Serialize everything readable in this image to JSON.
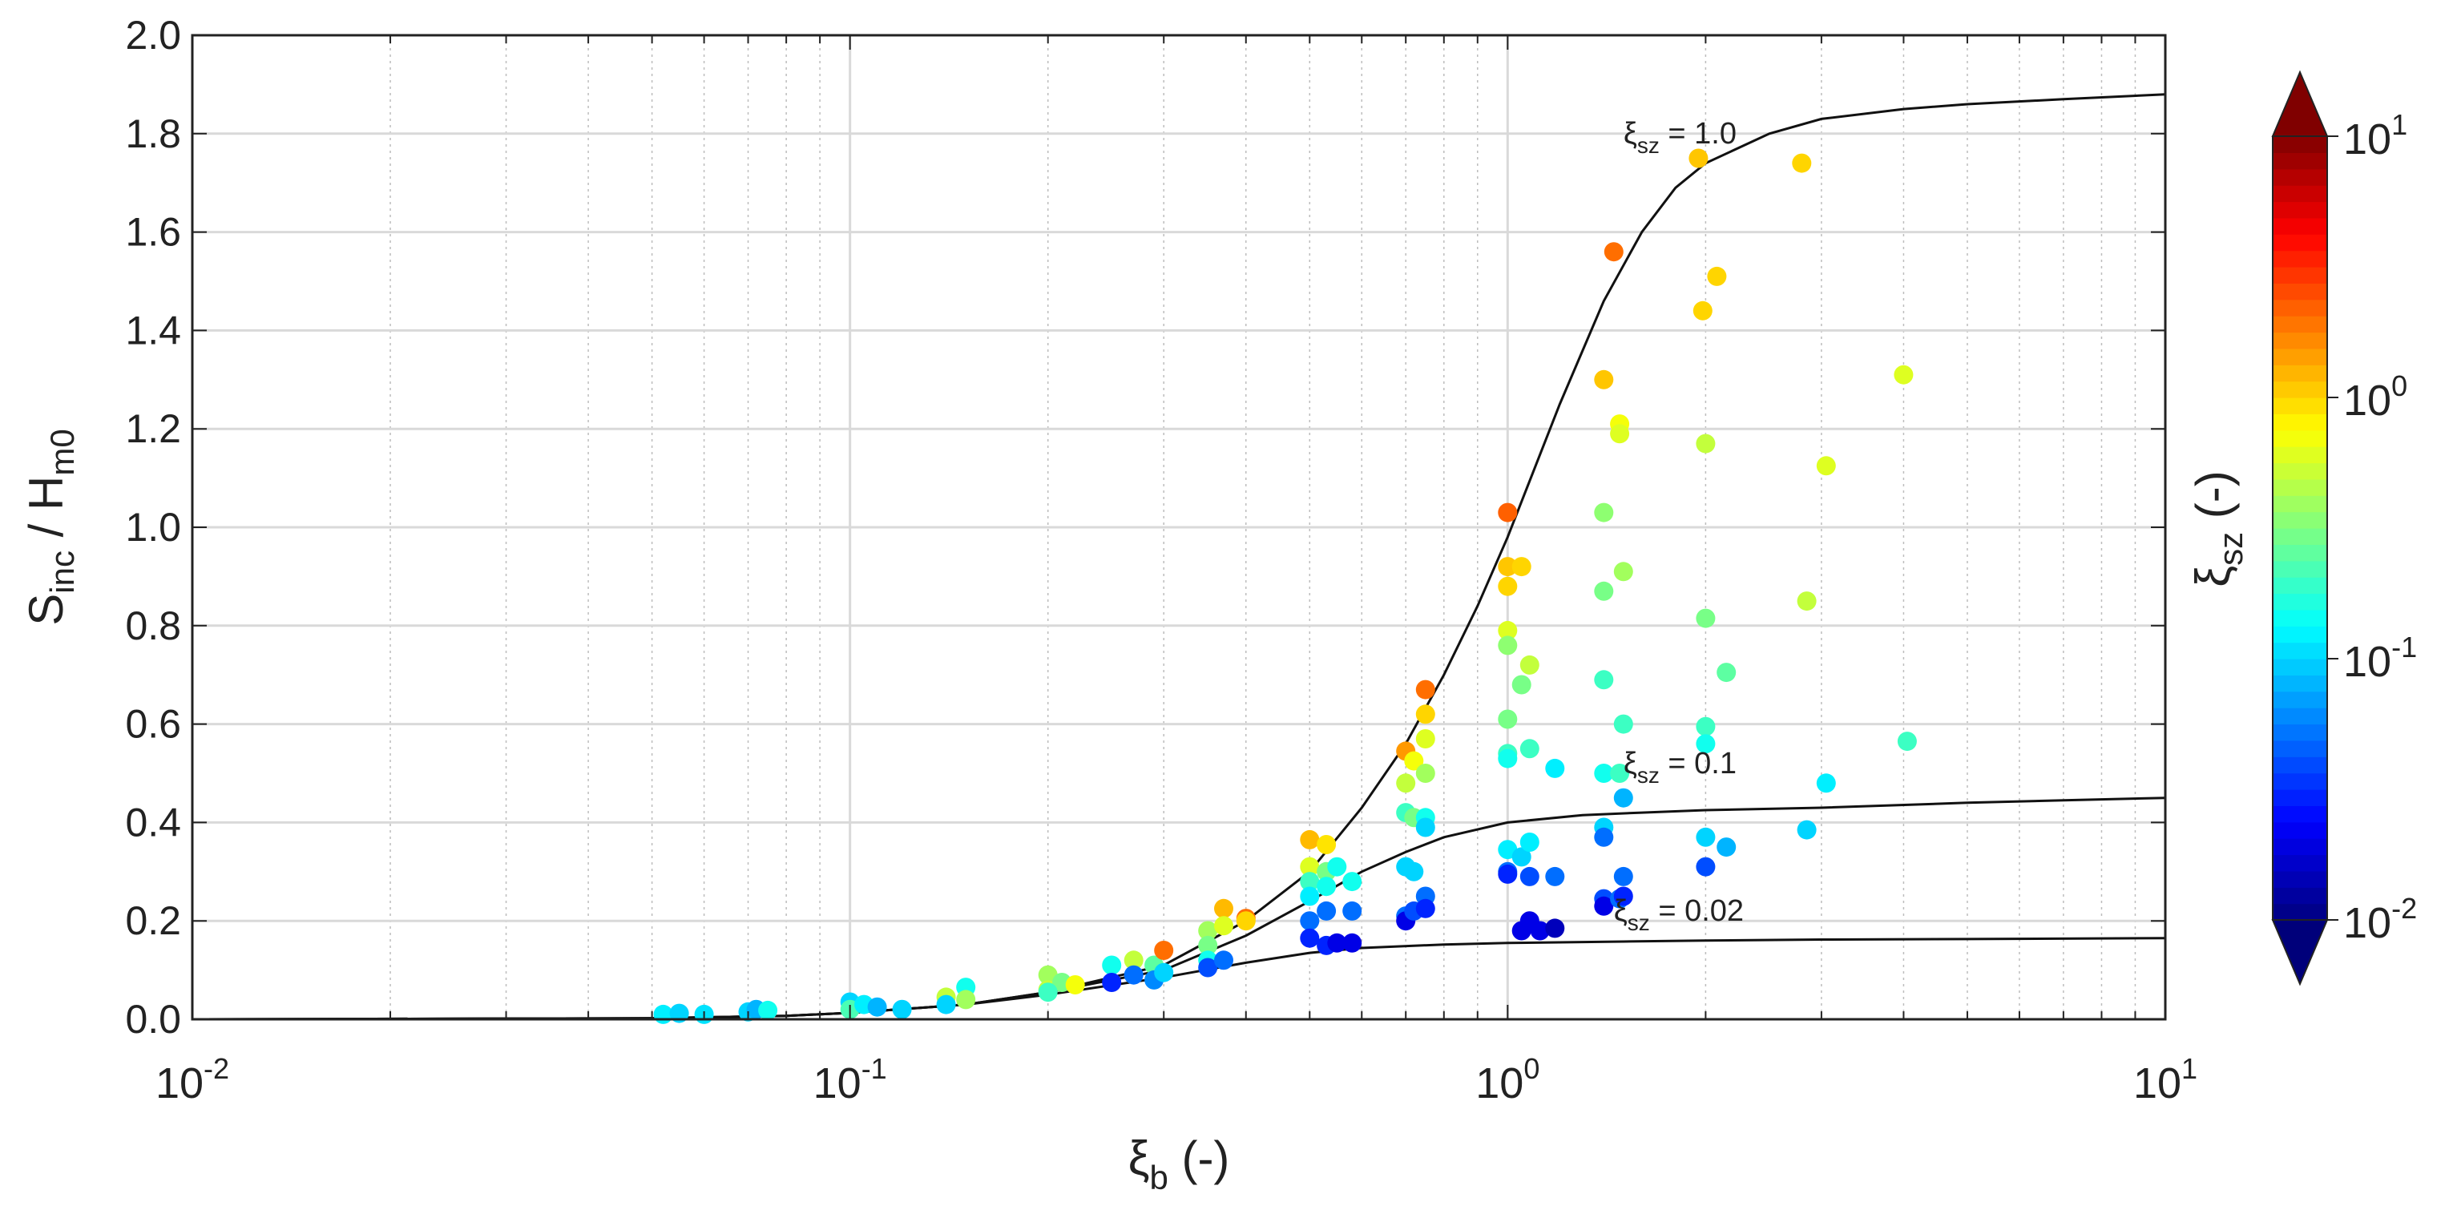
{
  "chart_data": {
    "type": "scatter",
    "x_scale": "log",
    "xlim": [
      0.01,
      10
    ],
    "ylim": [
      0,
      2
    ],
    "grid": true,
    "ylabel": {
      "main": "S",
      "sub1": "inc",
      "mid": " / H",
      "sub2": "m0"
    },
    "xlabel": {
      "main": "ξ",
      "sub": "b",
      "suffix": " (-)"
    },
    "x_ticks": [
      {
        "value": 0.01,
        "base": "10",
        "exp": "-2"
      },
      {
        "value": 0.1,
        "base": "10",
        "exp": "-1"
      },
      {
        "value": 1,
        "base": "10",
        "exp": "0"
      },
      {
        "value": 10,
        "base": "10",
        "exp": "1"
      }
    ],
    "y_ticks": [
      "0.0",
      "0.2",
      "0.4",
      "0.6",
      "0.8",
      "1.0",
      "1.2",
      "1.4",
      "1.6",
      "1.8",
      "2.0"
    ],
    "curves": [
      {
        "xi_sz": 1.0,
        "label_main": "ξ",
        "label_sub": "sz",
        "label_val": " = 1.0",
        "label_at": [
          1.5,
          1.78
        ],
        "points": [
          [
            0.01,
            0
          ],
          [
            0.05,
            0.002
          ],
          [
            0.08,
            0.007
          ],
          [
            0.1,
            0.013
          ],
          [
            0.15,
            0.03
          ],
          [
            0.2,
            0.055
          ],
          [
            0.3,
            0.11
          ],
          [
            0.4,
            0.2
          ],
          [
            0.5,
            0.3
          ],
          [
            0.6,
            0.43
          ],
          [
            0.7,
            0.56
          ],
          [
            0.8,
            0.7
          ],
          [
            0.9,
            0.84
          ],
          [
            1.0,
            0.98
          ],
          [
            1.2,
            1.25
          ],
          [
            1.4,
            1.46
          ],
          [
            1.6,
            1.6
          ],
          [
            1.8,
            1.69
          ],
          [
            2.0,
            1.74
          ],
          [
            2.5,
            1.8
          ],
          [
            3.0,
            1.83
          ],
          [
            4.0,
            1.85
          ],
          [
            5.0,
            1.86
          ],
          [
            7.0,
            1.87
          ],
          [
            10.0,
            1.88
          ]
        ]
      },
      {
        "xi_sz": 0.1,
        "label_main": "ξ",
        "label_sub": "sz",
        "label_val": " = 0.1",
        "label_at": [
          1.5,
          0.5
        ],
        "points": [
          [
            0.01,
            0
          ],
          [
            0.05,
            0.002
          ],
          [
            0.08,
            0.007
          ],
          [
            0.1,
            0.013
          ],
          [
            0.15,
            0.03
          ],
          [
            0.2,
            0.055
          ],
          [
            0.3,
            0.1
          ],
          [
            0.4,
            0.17
          ],
          [
            0.5,
            0.24
          ],
          [
            0.6,
            0.3
          ],
          [
            0.7,
            0.34
          ],
          [
            0.8,
            0.37
          ],
          [
            1.0,
            0.4
          ],
          [
            1.3,
            0.415
          ],
          [
            1.6,
            0.42
          ],
          [
            2.0,
            0.425
          ],
          [
            3.0,
            0.43
          ],
          [
            5.0,
            0.44
          ],
          [
            7.0,
            0.445
          ],
          [
            10.0,
            0.45
          ]
        ]
      },
      {
        "xi_sz": 0.02,
        "label_main": "ξ",
        "label_sub": "sz",
        "label_val": " = 0.02",
        "label_at": [
          1.45,
          0.2
        ],
        "points": [
          [
            0.01,
            0
          ],
          [
            0.05,
            0.002
          ],
          [
            0.08,
            0.007
          ],
          [
            0.1,
            0.013
          ],
          [
            0.15,
            0.03
          ],
          [
            0.2,
            0.05
          ],
          [
            0.3,
            0.085
          ],
          [
            0.4,
            0.115
          ],
          [
            0.5,
            0.135
          ],
          [
            0.6,
            0.145
          ],
          [
            0.8,
            0.152
          ],
          [
            1.0,
            0.155
          ],
          [
            1.5,
            0.158
          ],
          [
            2.0,
            0.16
          ],
          [
            3.0,
            0.162
          ],
          [
            5.0,
            0.163
          ],
          [
            10.0,
            0.165
          ]
        ]
      }
    ],
    "points": [
      {
        "x": 0.052,
        "y": 0.01,
        "c": 0.12
      },
      {
        "x": 0.055,
        "y": 0.012,
        "c": 0.1
      },
      {
        "x": 0.06,
        "y": 0.01,
        "c": 0.11
      },
      {
        "x": 0.07,
        "y": 0.015,
        "c": 0.1
      },
      {
        "x": 0.072,
        "y": 0.02,
        "c": 0.08
      },
      {
        "x": 0.075,
        "y": 0.018,
        "c": 0.15
      },
      {
        "x": 0.1,
        "y": 0.035,
        "c": 0.1
      },
      {
        "x": 0.1,
        "y": 0.02,
        "c": 0.22
      },
      {
        "x": 0.105,
        "y": 0.03,
        "c": 0.12
      },
      {
        "x": 0.11,
        "y": 0.025,
        "c": 0.08
      },
      {
        "x": 0.12,
        "y": 0.02,
        "c": 0.1
      },
      {
        "x": 0.14,
        "y": 0.045,
        "c": 0.5
      },
      {
        "x": 0.14,
        "y": 0.03,
        "c": 0.1
      },
      {
        "x": 0.15,
        "y": 0.065,
        "c": 0.15
      },
      {
        "x": 0.15,
        "y": 0.04,
        "c": 0.4
      },
      {
        "x": 0.2,
        "y": 0.09,
        "c": 0.4
      },
      {
        "x": 0.2,
        "y": 0.06,
        "c": 0.5
      },
      {
        "x": 0.21,
        "y": 0.075,
        "c": 0.3
      },
      {
        "x": 0.22,
        "y": 0.07,
        "c": 0.7
      },
      {
        "x": 0.2,
        "y": 0.055,
        "c": 0.2
      },
      {
        "x": 0.25,
        "y": 0.11,
        "c": 0.15
      },
      {
        "x": 0.25,
        "y": 0.075,
        "c": 0.03
      },
      {
        "x": 0.27,
        "y": 0.12,
        "c": 0.5
      },
      {
        "x": 0.27,
        "y": 0.09,
        "c": 0.05
      },
      {
        "x": 0.29,
        "y": 0.11,
        "c": 0.25
      },
      {
        "x": 0.29,
        "y": 0.08,
        "c": 0.06
      },
      {
        "x": 0.3,
        "y": 0.095,
        "c": 0.1
      },
      {
        "x": 0.3,
        "y": 0.14,
        "c": 2.0
      },
      {
        "x": 0.35,
        "y": 0.18,
        "c": 0.4
      },
      {
        "x": 0.35,
        "y": 0.15,
        "c": 0.3
      },
      {
        "x": 0.35,
        "y": 0.12,
        "c": 0.15
      },
      {
        "x": 0.35,
        "y": 0.105,
        "c": 0.04
      },
      {
        "x": 0.37,
        "y": 0.225,
        "c": 1.2
      },
      {
        "x": 0.37,
        "y": 0.19,
        "c": 0.6
      },
      {
        "x": 0.37,
        "y": 0.12,
        "c": 0.05
      },
      {
        "x": 0.4,
        "y": 0.205,
        "c": 2.0
      },
      {
        "x": 0.4,
        "y": 0.2,
        "c": 1.0
      },
      {
        "x": 0.5,
        "y": 0.365,
        "c": 1.2
      },
      {
        "x": 0.5,
        "y": 0.31,
        "c": 0.6
      },
      {
        "x": 0.5,
        "y": 0.28,
        "c": 0.2
      },
      {
        "x": 0.5,
        "y": 0.25,
        "c": 0.12
      },
      {
        "x": 0.5,
        "y": 0.2,
        "c": 0.05
      },
      {
        "x": 0.5,
        "y": 0.165,
        "c": 0.03
      },
      {
        "x": 0.53,
        "y": 0.355,
        "c": 0.9
      },
      {
        "x": 0.53,
        "y": 0.3,
        "c": 0.3
      },
      {
        "x": 0.53,
        "y": 0.27,
        "c": 0.15
      },
      {
        "x": 0.53,
        "y": 0.22,
        "c": 0.05
      },
      {
        "x": 0.53,
        "y": 0.15,
        "c": 0.03
      },
      {
        "x": 0.55,
        "y": 0.31,
        "c": 0.15
      },
      {
        "x": 0.55,
        "y": 0.155,
        "c": 0.02
      },
      {
        "x": 0.58,
        "y": 0.28,
        "c": 0.15
      },
      {
        "x": 0.58,
        "y": 0.22,
        "c": 0.05
      },
      {
        "x": 0.58,
        "y": 0.155,
        "c": 0.02
      },
      {
        "x": 0.7,
        "y": 0.545,
        "c": 1.5
      },
      {
        "x": 0.7,
        "y": 0.48,
        "c": 0.5
      },
      {
        "x": 0.7,
        "y": 0.42,
        "c": 0.2
      },
      {
        "x": 0.7,
        "y": 0.31,
        "c": 0.1
      },
      {
        "x": 0.7,
        "y": 0.21,
        "c": 0.05
      },
      {
        "x": 0.7,
        "y": 0.2,
        "c": 0.02
      },
      {
        "x": 0.72,
        "y": 0.525,
        "c": 0.7
      },
      {
        "x": 0.72,
        "y": 0.41,
        "c": 0.3
      },
      {
        "x": 0.72,
        "y": 0.3,
        "c": 0.1
      },
      {
        "x": 0.72,
        "y": 0.22,
        "c": 0.04
      },
      {
        "x": 0.75,
        "y": 0.67,
        "c": 2.0
      },
      {
        "x": 0.75,
        "y": 0.62,
        "c": 1.0
      },
      {
        "x": 0.75,
        "y": 0.57,
        "c": 0.6
      },
      {
        "x": 0.75,
        "y": 0.5,
        "c": 0.4
      },
      {
        "x": 0.75,
        "y": 0.41,
        "c": 0.15
      },
      {
        "x": 0.75,
        "y": 0.39,
        "c": 0.1
      },
      {
        "x": 0.75,
        "y": 0.25,
        "c": 0.05
      },
      {
        "x": 0.75,
        "y": 0.225,
        "c": 0.03
      },
      {
        "x": 1.0,
        "y": 1.03,
        "c": 2.2
      },
      {
        "x": 1.0,
        "y": 0.92,
        "c": 1.1
      },
      {
        "x": 1.0,
        "y": 0.88,
        "c": 1.0
      },
      {
        "x": 1.0,
        "y": 0.79,
        "c": 0.6
      },
      {
        "x": 1.0,
        "y": 0.76,
        "c": 0.35
      },
      {
        "x": 1.0,
        "y": 0.61,
        "c": 0.3
      },
      {
        "x": 1.0,
        "y": 0.54,
        "c": 0.2
      },
      {
        "x": 1.0,
        "y": 0.53,
        "c": 0.15
      },
      {
        "x": 1.0,
        "y": 0.345,
        "c": 0.12
      },
      {
        "x": 1.0,
        "y": 0.3,
        "c": 0.05
      },
      {
        "x": 1.0,
        "y": 0.295,
        "c": 0.03
      },
      {
        "x": 1.05,
        "y": 0.92,
        "c": 1.0
      },
      {
        "x": 1.05,
        "y": 0.68,
        "c": 0.3
      },
      {
        "x": 1.05,
        "y": 0.33,
        "c": 0.1
      },
      {
        "x": 1.05,
        "y": 0.18,
        "c": 0.02
      },
      {
        "x": 1.08,
        "y": 0.72,
        "c": 0.5
      },
      {
        "x": 1.08,
        "y": 0.55,
        "c": 0.2
      },
      {
        "x": 1.08,
        "y": 0.36,
        "c": 0.12
      },
      {
        "x": 1.08,
        "y": 0.29,
        "c": 0.04
      },
      {
        "x": 1.08,
        "y": 0.2,
        "c": 0.02
      },
      {
        "x": 1.12,
        "y": 0.18,
        "c": 0.02
      },
      {
        "x": 1.18,
        "y": 0.51,
        "c": 0.12
      },
      {
        "x": 1.18,
        "y": 0.29,
        "c": 0.05
      },
      {
        "x": 1.18,
        "y": 0.185,
        "c": 0.015
      },
      {
        "x": 1.4,
        "y": 1.3,
        "c": 1.1
      },
      {
        "x": 1.4,
        "y": 1.03,
        "c": 0.35
      },
      {
        "x": 1.4,
        "y": 0.87,
        "c": 0.3
      },
      {
        "x": 1.4,
        "y": 0.69,
        "c": 0.2
      },
      {
        "x": 1.4,
        "y": 0.5,
        "c": 0.15
      },
      {
        "x": 1.4,
        "y": 0.39,
        "c": 0.1
      },
      {
        "x": 1.4,
        "y": 0.37,
        "c": 0.05
      },
      {
        "x": 1.4,
        "y": 0.245,
        "c": 0.04
      },
      {
        "x": 1.4,
        "y": 0.23,
        "c": 0.02
      },
      {
        "x": 1.45,
        "y": 1.56,
        "c": 2.0
      },
      {
        "x": 1.48,
        "y": 1.21,
        "c": 0.7
      },
      {
        "x": 1.48,
        "y": 1.19,
        "c": 0.6
      },
      {
        "x": 1.48,
        "y": 0.5,
        "c": 0.2
      },
      {
        "x": 1.48,
        "y": 0.245,
        "c": 0.05
      },
      {
        "x": 1.5,
        "y": 0.91,
        "c": 0.4
      },
      {
        "x": 1.5,
        "y": 0.6,
        "c": 0.2
      },
      {
        "x": 1.5,
        "y": 0.45,
        "c": 0.08
      },
      {
        "x": 1.5,
        "y": 0.29,
        "c": 0.05
      },
      {
        "x": 1.5,
        "y": 0.25,
        "c": 0.03
      },
      {
        "x": 1.95,
        "y": 1.75,
        "c": 1.1
      },
      {
        "x": 1.98,
        "y": 1.44,
        "c": 1.0
      },
      {
        "x": 2.0,
        "y": 1.17,
        "c": 0.5
      },
      {
        "x": 2.0,
        "y": 0.815,
        "c": 0.3
      },
      {
        "x": 2.0,
        "y": 0.595,
        "c": 0.2
      },
      {
        "x": 2.0,
        "y": 0.56,
        "c": 0.15
      },
      {
        "x": 2.0,
        "y": 0.37,
        "c": 0.1
      },
      {
        "x": 2.0,
        "y": 0.31,
        "c": 0.04
      },
      {
        "x": 2.08,
        "y": 1.51,
        "c": 1.0
      },
      {
        "x": 2.15,
        "y": 0.705,
        "c": 0.25
      },
      {
        "x": 2.15,
        "y": 0.35,
        "c": 0.08
      },
      {
        "x": 2.8,
        "y": 1.74,
        "c": 1.0
      },
      {
        "x": 2.85,
        "y": 0.85,
        "c": 0.5
      },
      {
        "x": 2.85,
        "y": 0.385,
        "c": 0.1
      },
      {
        "x": 3.05,
        "y": 1.125,
        "c": 0.6
      },
      {
        "x": 3.05,
        "y": 0.48,
        "c": 0.12
      },
      {
        "x": 4.0,
        "y": 1.31,
        "c": 0.6
      },
      {
        "x": 4.05,
        "y": 0.565,
        "c": 0.2
      }
    ],
    "colorbar": {
      "label_main": "ξ",
      "label_sub": "sz",
      "label_suffix": " (-)",
      "clim": [
        0.01,
        10
      ],
      "ticks": [
        {
          "value": 10,
          "base": "10",
          "exp": "1"
        },
        {
          "value": 1,
          "base": "10",
          "exp": "0"
        },
        {
          "value": 0.1,
          "base": "10",
          "exp": "-1"
        },
        {
          "value": 0.01,
          "base": "10",
          "exp": "-2"
        }
      ]
    }
  }
}
